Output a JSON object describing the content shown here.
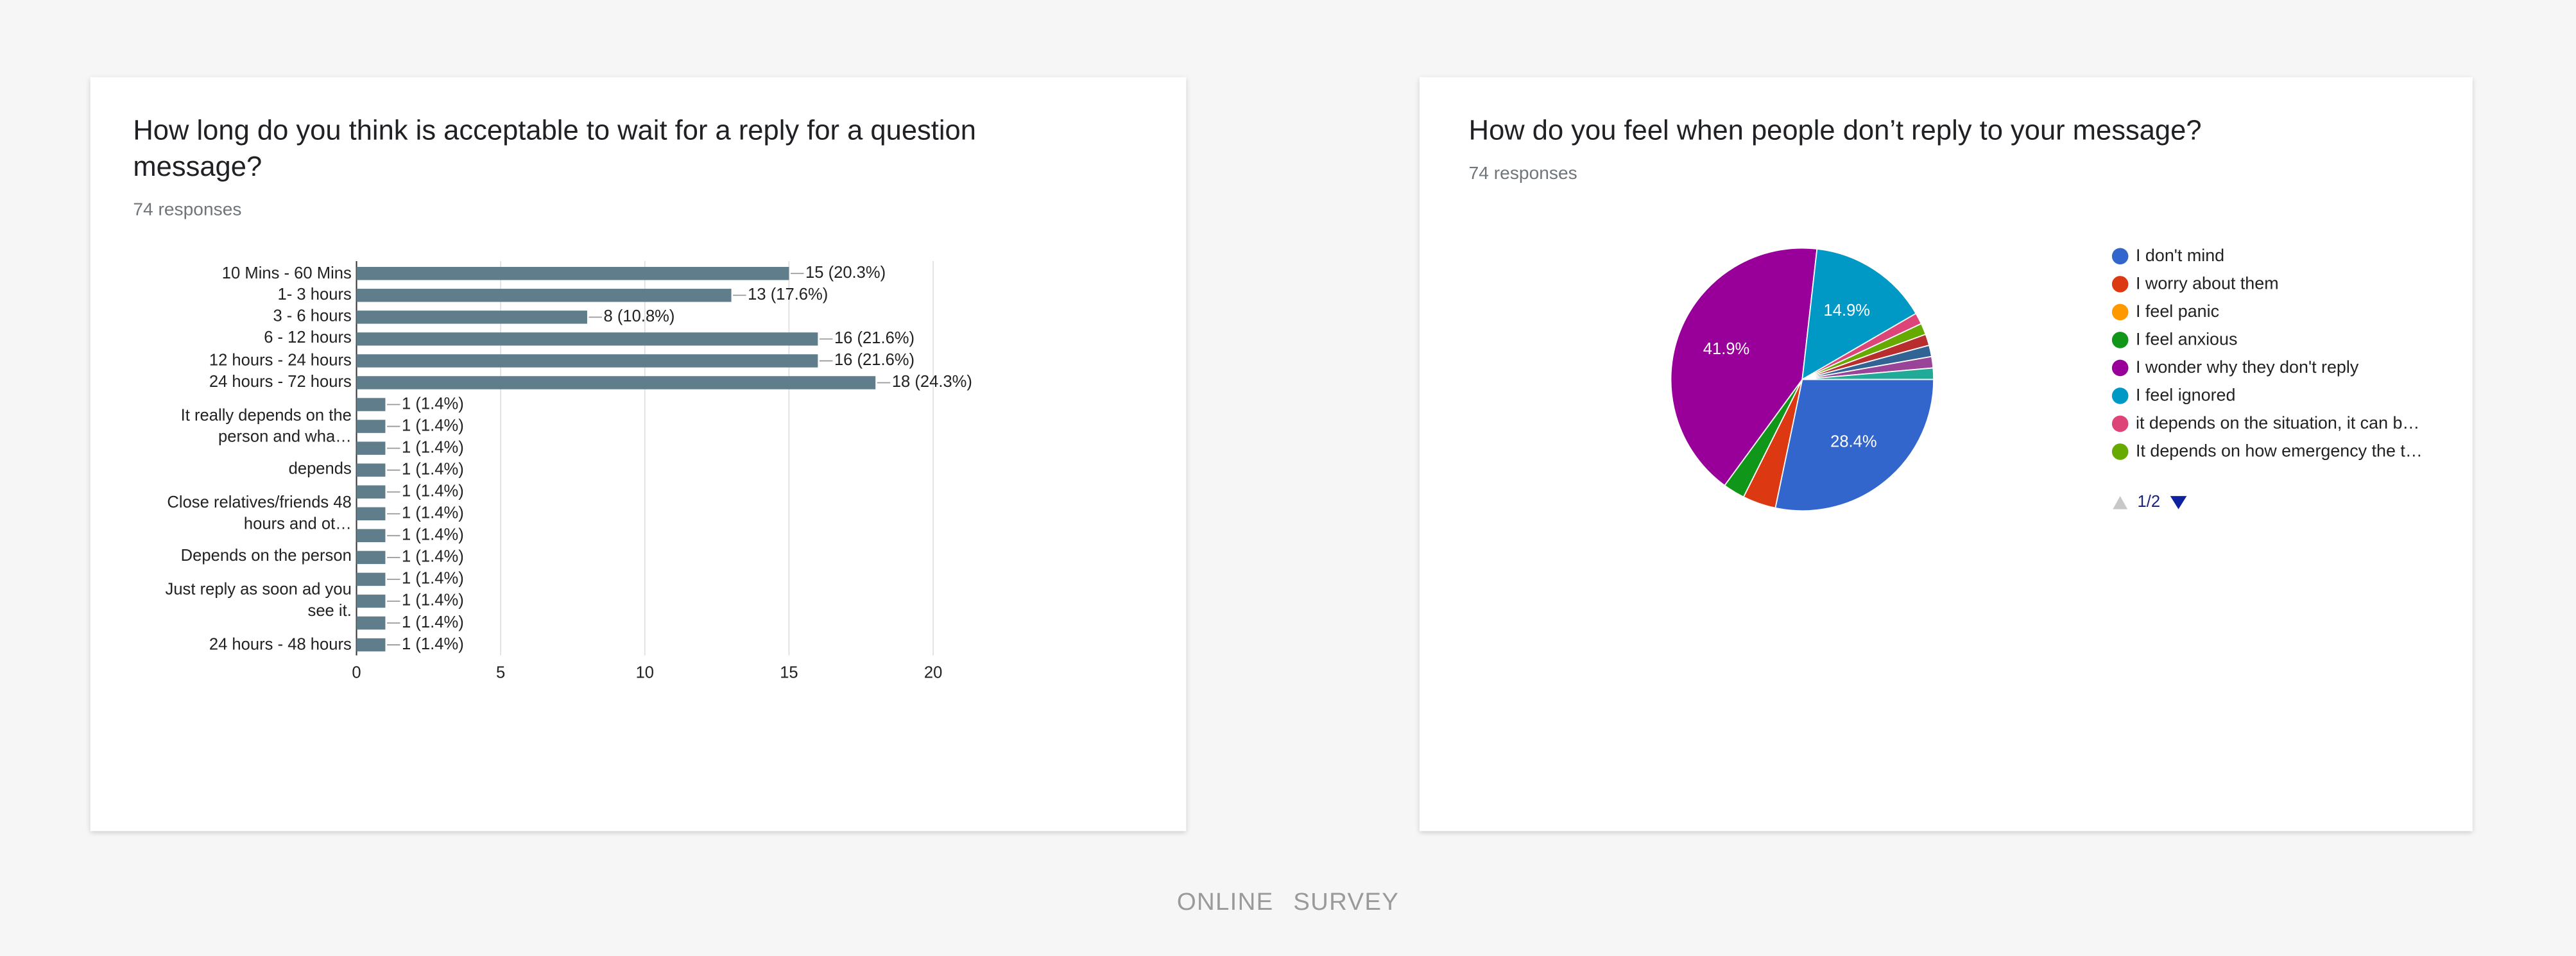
{
  "chart_data": [
    {
      "type": "bar",
      "orientation": "horizontal",
      "title": "How long do you think is acceptable to wait for a reply for a question message?",
      "subtitle": "74 responses",
      "categories": [
        "10 Mins - 60 Mins",
        "1- 3 hours",
        "3 - 6 hours",
        "6 - 12 hours",
        "12 hours - 24 hours",
        "24 hours - 72 hours",
        null,
        "It really depends on the person and wha…",
        null,
        "depends",
        null,
        "Close relatives/friends 48 hours and ot…",
        null,
        "Depends on the person",
        null,
        "Just reply as soon ad you see it.",
        null,
        "24 hours - 48 hours"
      ],
      "values": [
        15,
        13,
        8,
        16,
        16,
        18,
        1,
        1,
        1,
        1,
        1,
        1,
        1,
        1,
        1,
        1,
        1,
        1
      ],
      "value_labels": [
        "15 (20.3%)",
        "13 (17.6%)",
        "8 (10.8%)",
        "16 (21.6%)",
        "16 (21.6%)",
        "18 (24.3%)",
        "1 (1.4%)",
        "1 (1.4%)",
        "1 (1.4%)",
        "1 (1.4%)",
        "1 (1.4%)",
        "1 (1.4%)",
        "1 (1.4%)",
        "1 (1.4%)",
        "1 (1.4%)",
        "1 (1.4%)",
        "1 (1.4%)",
        "1 (1.4%)"
      ],
      "color": "#607d8b",
      "xlim": [
        0,
        20
      ],
      "xticks": [
        0,
        5,
        10,
        15,
        20
      ],
      "grid": true
    },
    {
      "type": "pie",
      "title": "How do you feel when people don’t reply to your message?",
      "subtitle": "74 responses",
      "categories": [
        "I don't mind",
        "I worry about them",
        "I feel panic",
        "I feel anxious",
        "I wonder why they don't reply",
        "I feel ignored",
        "it depends on the situation, it can b…",
        "It depends on how emergency the t…",
        null,
        null,
        null,
        null
      ],
      "values": [
        28.4,
        4.1,
        0,
        2.7,
        41.9,
        14.9,
        1.4,
        1.4,
        1.4,
        1.4,
        1.4,
        1.4
      ],
      "value_labels": [
        "28.4%",
        null,
        null,
        null,
        "41.9%",
        "14.9%",
        null,
        null,
        null,
        null,
        null,
        null
      ],
      "colors": [
        "#3366cc",
        "#dc3912",
        "#ff9900",
        "#109618",
        "#990099",
        "#0099c6",
        "#dd4477",
        "#66aa00",
        "#b82e2e",
        "#316395",
        "#994499",
        "#22aa99"
      ],
      "start_angle": 90,
      "legend": "right",
      "legend_page": "1/2"
    }
  ],
  "footer": [
    "ONLINE",
    "SURVEY"
  ]
}
